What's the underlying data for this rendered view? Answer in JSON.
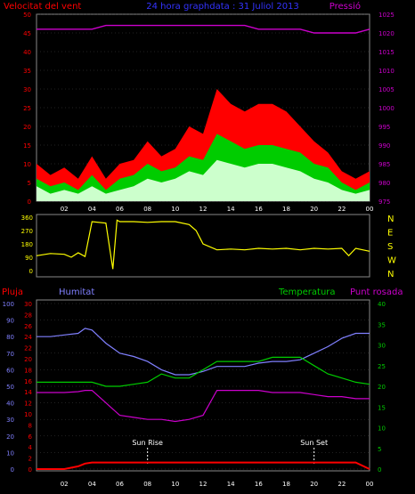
{
  "header": {
    "left": "Velocitat del vent",
    "center": "24 hora graphdata : 31 Juliol 2013",
    "right": "Pressió"
  },
  "colors": {
    "wind_high": "#ff0000",
    "wind_mid": "#00cc00",
    "wind_low": "#ccffcc",
    "pressure": "#cc00cc",
    "direction": "#ffff00",
    "rain": "#ff0000",
    "humidity": "#8080ff",
    "temperature": "#00cc00",
    "dewpoint": "#cc00cc",
    "axis_left": "#ff0000",
    "axis_right": "#cc00cc",
    "hours": "#ffffff",
    "grid": "#555555",
    "markers": "#ffffff"
  },
  "hour_ticks": [
    "02",
    "04",
    "06",
    "08",
    "10",
    "12",
    "14",
    "16",
    "18",
    "20",
    "22",
    "00"
  ],
  "chart_data": [
    {
      "type": "area",
      "panel": "wind-pressure",
      "xlabel": "",
      "ylabel_left": "Velocitat del vent",
      "ylabel_right": "Pressió",
      "ylim_left": [
        0,
        50
      ],
      "yticks_left": [
        "0",
        "5",
        "10",
        "15",
        "20",
        "25",
        "30",
        "35",
        "40",
        "45",
        "50"
      ],
      "ylim_right": [
        975,
        1025
      ],
      "yticks_right": [
        "975",
        "980",
        "985",
        "990",
        "995",
        "1000",
        "1005",
        "1010",
        "1015",
        "1020",
        "1025"
      ],
      "x_hours": [
        0,
        1,
        2,
        3,
        4,
        5,
        6,
        7,
        8,
        9,
        10,
        11,
        12,
        13,
        14,
        15,
        16,
        17,
        18,
        19,
        20,
        21,
        22,
        23,
        24
      ],
      "series": [
        {
          "name": "gust",
          "color_key": "wind_high",
          "values": [
            10,
            7,
            9,
            6,
            12,
            6,
            10,
            11,
            16,
            12,
            14,
            20,
            18,
            30,
            26,
            24,
            26,
            26,
            24,
            20,
            16,
            13,
            8,
            6,
            8
          ]
        },
        {
          "name": "wind",
          "color_key": "wind_mid",
          "values": [
            6,
            4,
            5,
            3,
            7,
            3,
            6,
            7,
            10,
            8,
            9,
            12,
            11,
            18,
            16,
            14,
            15,
            15,
            14,
            13,
            10,
            9,
            5,
            3,
            5
          ]
        },
        {
          "name": "avg",
          "color_key": "wind_low",
          "values": [
            4,
            2,
            3,
            2,
            4,
            2,
            3,
            4,
            6,
            5,
            6,
            8,
            7,
            11,
            10,
            9,
            10,
            10,
            9,
            8,
            6,
            5,
            3,
            2,
            3
          ]
        },
        {
          "name": "pressure",
          "color_key": "pressure",
          "values": [
            1021,
            1021,
            1021,
            1021,
            1021,
            1022,
            1022,
            1022,
            1022,
            1022,
            1022,
            1022,
            1022,
            1022,
            1022,
            1022,
            1021,
            1021,
            1021,
            1021,
            1020,
            1020,
            1020,
            1020,
            1021
          ]
        }
      ]
    },
    {
      "type": "line",
      "panel": "wind-direction",
      "ylim": [
        0,
        360
      ],
      "yticks_left": [
        "0",
        "90",
        "180",
        "270",
        "360"
      ],
      "yticks_right": [
        "N",
        "W",
        "S",
        "E",
        "N"
      ],
      "x_hours": [
        0,
        1,
        2,
        2.5,
        3,
        3.5,
        4,
        5,
        5.5,
        5.8,
        6,
        7,
        8,
        9,
        10,
        11,
        11.5,
        12,
        13,
        14,
        15,
        16,
        17,
        18,
        19,
        20,
        21,
        22,
        22.5,
        23,
        24
      ],
      "series": [
        {
          "name": "direction",
          "color_key": "direction",
          "values": [
            100,
            115,
            110,
            90,
            120,
            95,
            330,
            320,
            10,
            340,
            330,
            330,
            325,
            330,
            330,
            310,
            270,
            180,
            140,
            145,
            140,
            150,
            145,
            150,
            140,
            150,
            145,
            150,
            100,
            150,
            130
          ]
        }
      ]
    },
    {
      "type": "line",
      "panel": "weather",
      "axis_titles": {
        "rain": "Pluja",
        "humidity": "Humitat",
        "temperature": "Temperatura",
        "dewpoint": "Punt rosada"
      },
      "yticks_humidity": [
        "0",
        "10",
        "20",
        "30",
        "40",
        "50",
        "60",
        "70",
        "80",
        "90",
        "100"
      ],
      "yticks_pluja": [
        "0",
        "2",
        "4",
        "6",
        "8",
        "10",
        "12",
        "14",
        "16",
        "18",
        "20",
        "22",
        "24",
        "26",
        "28",
        "30"
      ],
      "yticks_temperature": [
        "0",
        "5",
        "10",
        "15",
        "20",
        "25",
        "30",
        "35",
        "40"
      ],
      "ylim_humidity": [
        0,
        100
      ],
      "ylim_temperature": [
        0,
        40
      ],
      "annotations": [
        {
          "label": "Sun Rise",
          "hour": 8.0
        },
        {
          "label": "Sun Set",
          "hour": 20.0
        }
      ],
      "x_hours": [
        0,
        1,
        2,
        3,
        3.5,
        4,
        5,
        6,
        7,
        8,
        9,
        10,
        11,
        12,
        13,
        14,
        15,
        16,
        17,
        18,
        19,
        20,
        21,
        22,
        23,
        24
      ],
      "series": [
        {
          "name": "humidity",
          "color_key": "humidity",
          "axis": "humidity",
          "values": [
            80,
            80,
            81,
            82,
            85,
            84,
            76,
            70,
            68,
            65,
            60,
            57,
            57,
            59,
            62,
            62,
            62,
            64,
            65,
            65,
            66,
            70,
            74,
            79,
            82,
            82
          ]
        },
        {
          "name": "temperature",
          "color_key": "temperature",
          "axis": "temperature",
          "values": [
            21,
            21,
            21,
            21,
            21,
            21,
            20,
            20,
            20.5,
            21,
            23,
            22,
            22,
            24,
            26,
            26,
            26,
            26,
            27,
            27,
            27,
            25,
            23,
            22,
            21,
            20.5
          ]
        },
        {
          "name": "dewpoint",
          "color_key": "dewpoint",
          "axis": "temperature",
          "values": [
            18.5,
            18.5,
            18.5,
            18.7,
            19,
            19,
            16,
            13,
            12.5,
            12,
            12,
            11.5,
            12,
            13,
            19,
            19,
            19,
            19,
            18.5,
            18.5,
            18.5,
            18,
            17.5,
            17.5,
            17,
            17
          ]
        },
        {
          "name": "rain",
          "color_key": "rain",
          "axis": "pluja",
          "values": [
            0,
            0,
            0,
            0.5,
            1,
            1.2,
            1.2,
            1.2,
            1.2,
            1.2,
            1.2,
            1.2,
            1.2,
            1.2,
            1.2,
            1.2,
            1.2,
            1.2,
            1.2,
            1.2,
            1.2,
            1.2,
            1.2,
            1.2,
            1.2,
            0
          ]
        }
      ]
    }
  ]
}
